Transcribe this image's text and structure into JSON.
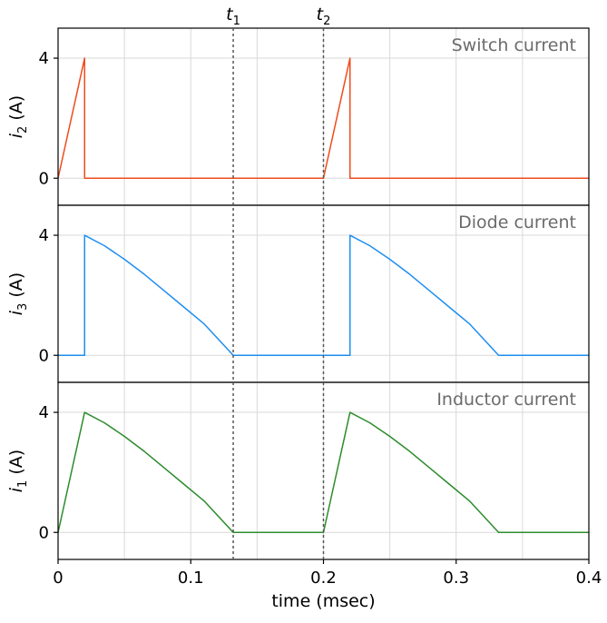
{
  "chart_data": {
    "type": "line",
    "xlabel": "time (msec)",
    "xlim": [
      0,
      0.4
    ],
    "x_ticks": [
      0,
      0.1,
      0.2,
      0.3,
      0.4
    ],
    "x_tick_labels": [
      "0",
      "0.1",
      "0.2",
      "0.3",
      "0.4"
    ],
    "x_minor_gridlines": [
      0.05,
      0.15,
      0.25,
      0.35
    ],
    "grid": true,
    "markers": [
      {
        "label_base": "t",
        "label_sub": "1",
        "x": 0.132
      },
      {
        "label_base": "t",
        "label_sub": "2",
        "x": 0.2
      }
    ],
    "panels": [
      {
        "title": "Switch current",
        "ylabel_base": "i",
        "ylabel_sub": "2",
        "ylabel_unit": "(A)",
        "ylim": [
          -0.9,
          5
        ],
        "y_ticks": [
          0,
          4
        ],
        "y_tick_labels": [
          "0",
          "4"
        ],
        "color": "#ee4c1c",
        "series": [
          {
            "x": [
              0,
              0.02,
              0.02,
              0.2,
              0.22,
              0.22,
              0.4
            ],
            "y": [
              0,
              4,
              0,
              0,
              4,
              0,
              0
            ]
          }
        ]
      },
      {
        "title": "Diode current",
        "ylabel_base": "i",
        "ylabel_sub": "3",
        "ylabel_unit": "(A)",
        "ylim": [
          -0.9,
          5
        ],
        "y_ticks": [
          0,
          4
        ],
        "y_tick_labels": [
          "0",
          "4"
        ],
        "color": "#1f8ef0",
        "series": [
          {
            "x": [
              0,
              0.02,
              0.02,
              0.035,
              0.05,
              0.065,
              0.08,
              0.095,
              0.11,
              0.132,
              0.22,
              0.22,
              0.235,
              0.25,
              0.265,
              0.28,
              0.295,
              0.31,
              0.332,
              0.4
            ],
            "y": [
              0,
              0,
              4,
              3.65,
              3.2,
              2.7,
              2.15,
              1.6,
              1.05,
              0,
              0,
              4,
              3.65,
              3.2,
              2.7,
              2.15,
              1.6,
              1.05,
              0,
              0
            ]
          }
        ]
      },
      {
        "title": "Inductor current",
        "ylabel_base": "i",
        "ylabel_sub": "1",
        "ylabel_unit": "(A)",
        "ylim": [
          -0.9,
          5
        ],
        "y_ticks": [
          0,
          4
        ],
        "y_tick_labels": [
          "0",
          "4"
        ],
        "color": "#2c8c2c",
        "series": [
          {
            "x": [
              0,
              0.02,
              0.035,
              0.05,
              0.065,
              0.08,
              0.095,
              0.11,
              0.132,
              0.2,
              0.22,
              0.235,
              0.25,
              0.265,
              0.28,
              0.295,
              0.31,
              0.332,
              0.4
            ],
            "y": [
              0,
              4,
              3.65,
              3.2,
              2.7,
              2.15,
              1.6,
              1.05,
              0,
              0,
              4,
              3.65,
              3.2,
              2.7,
              2.15,
              1.6,
              1.05,
              0,
              0
            ]
          }
        ]
      }
    ]
  }
}
